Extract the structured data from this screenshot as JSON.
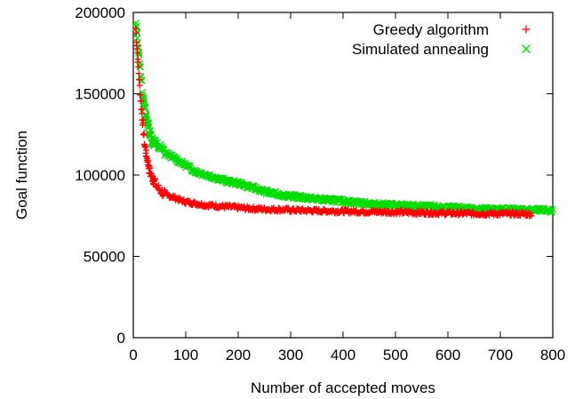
{
  "chart_data": {
    "type": "scatter",
    "title": "",
    "xlabel": "Number of accepted moves",
    "ylabel": "Goal function",
    "xlim": [
      0,
      800
    ],
    "ylim": [
      0,
      200000
    ],
    "x_ticks": [
      0,
      100,
      200,
      300,
      400,
      500,
      600,
      700,
      800
    ],
    "y_ticks": [
      0,
      50000,
      100000,
      150000,
      200000
    ],
    "x_tick_labels": [
      "0",
      "100",
      "200",
      "300",
      "400",
      "500",
      "600",
      "700",
      "800"
    ],
    "y_tick_labels": [
      "0",
      "50000",
      "100000",
      "150000",
      "200000"
    ],
    "grid": false,
    "legend_position": "top-right",
    "series": [
      {
        "name": "Greedy algorithm",
        "marker": "plus",
        "color": "#ff0000",
        "x": [
          5,
          8,
          10,
          12,
          15,
          18,
          20,
          22,
          25,
          28,
          30,
          35,
          40,
          45,
          50,
          55,
          60,
          70,
          80,
          90,
          100,
          120,
          140,
          160,
          180,
          200,
          220,
          250,
          280,
          300,
          330,
          360,
          400,
          430,
          460,
          500,
          530,
          560,
          600,
          640,
          680,
          720,
          760
        ],
        "y": [
          190000,
          175000,
          165000,
          155000,
          143000,
          132000,
          125000,
          118000,
          112000,
          108000,
          104000,
          99000,
          96000,
          93000,
          91000,
          89500,
          88500,
          87000,
          86000,
          84500,
          83500,
          82500,
          81500,
          81000,
          80500,
          80000,
          79500,
          79000,
          78800,
          78500,
          78200,
          78000,
          77800,
          77600,
          77400,
          77200,
          77000,
          76800,
          76600,
          76400,
          76300,
          76200,
          76000
        ]
      },
      {
        "name": "Simulated annealing",
        "marker": "cross",
        "color": "#00dd00",
        "x": [
          5,
          8,
          10,
          12,
          15,
          18,
          20,
          25,
          30,
          35,
          40,
          50,
          60,
          70,
          80,
          90,
          100,
          110,
          120,
          140,
          160,
          180,
          200,
          220,
          240,
          260,
          280,
          300,
          330,
          360,
          400,
          430,
          460,
          500,
          530,
          560,
          600,
          640,
          680,
          720,
          760,
          800
        ],
        "y": [
          192000,
          185000,
          178000,
          170000,
          160000,
          150000,
          145000,
          135000,
          128000,
          122000,
          120000,
          117000,
          114000,
          112000,
          110000,
          108000,
          106000,
          104000,
          102000,
          100000,
          98000,
          96000,
          95000,
          93000,
          91000,
          89000,
          88000,
          87000,
          86000,
          85000,
          84000,
          83000,
          82000,
          81500,
          81000,
          80500,
          80000,
          79500,
          79000,
          78800,
          78500,
          78200
        ]
      }
    ]
  }
}
